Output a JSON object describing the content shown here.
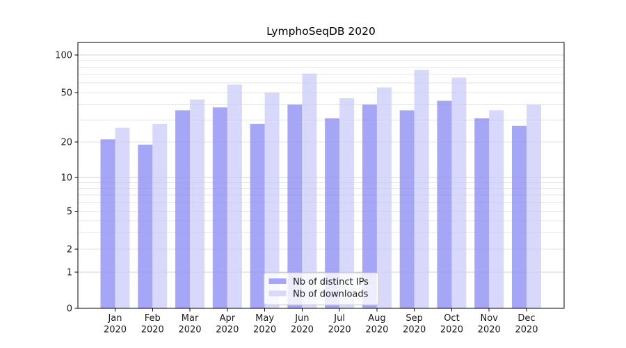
{
  "title": "LymphoSeqDB 2020",
  "chart_data": {
    "type": "bar",
    "title": "LymphoSeqDB 2020",
    "x_tick_months": [
      "Jan",
      "Feb",
      "Mar",
      "Apr",
      "May",
      "Jun",
      "Jul",
      "Aug",
      "Sep",
      "Oct",
      "Nov",
      "Dec"
    ],
    "x_tick_year": "2020",
    "series": [
      {
        "name": "Nb of distinct IPs",
        "color": "#a6a6f7",
        "values": [
          21,
          19,
          36,
          38,
          28,
          40,
          31,
          40,
          36,
          43,
          31,
          27
        ]
      },
      {
        "name": "Nb of downloads",
        "color": "#d8d8fa",
        "values": [
          26,
          28,
          44,
          58,
          50,
          71,
          45,
          55,
          76,
          66,
          36,
          40
        ]
      }
    ],
    "yscale": "symlog",
    "yticks": [
      0,
      1,
      2,
      5,
      10,
      20,
      50,
      100
    ],
    "minor_gridline_values": [
      3,
      4,
      6,
      7,
      8,
      9,
      30,
      40,
      60,
      70,
      80,
      90
    ],
    "ylim": [
      0,
      110
    ],
    "grid": true,
    "legend_position": "lower center",
    "colors": {
      "grid_minor": "#efefef",
      "grid_major": "#dcdcdc",
      "spine": "#000000",
      "tick_label": "#1a1a1a",
      "legend_border": "#cccccc",
      "legend_bg": "#ffffff"
    }
  }
}
